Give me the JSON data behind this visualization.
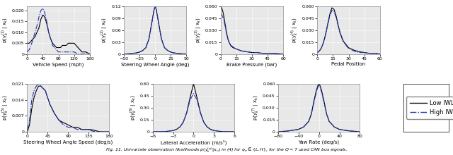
{
  "subplots": [
    {
      "xlabel": "Vehicle Speed (mph)",
      "ylabel": "p(y$_k^{(1)}$ | x$_k$)",
      "xlim": [
        0,
        160
      ],
      "ylim": [
        0,
        0.022
      ],
      "yticks": [
        0,
        0.005,
        0.01,
        0.015,
        0.02
      ],
      "ytick_labels": [
        "0",
        "0.005",
        "0.010",
        "0.015",
        "0.020"
      ],
      "xticks": [
        0,
        40,
        80,
        120,
        160
      ],
      "low_x": [
        0,
        5,
        10,
        15,
        20,
        25,
        30,
        35,
        40,
        45,
        50,
        55,
        60,
        65,
        70,
        75,
        80,
        85,
        90,
        95,
        100,
        105,
        110,
        115,
        120,
        125,
        130,
        135,
        140,
        145,
        150,
        155,
        160
      ],
      "low_y": [
        0.005,
        0.005,
        0.006,
        0.007,
        0.008,
        0.01,
        0.012,
        0.016,
        0.018,
        0.017,
        0.014,
        0.01,
        0.007,
        0.005,
        0.004,
        0.003,
        0.003,
        0.003,
        0.004,
        0.004,
        0.004,
        0.005,
        0.005,
        0.005,
        0.005,
        0.004,
        0.003,
        0.002,
        0.001,
        0.001,
        0.001,
        0.0005,
        0.0
      ],
      "high_x": [
        0,
        5,
        10,
        15,
        20,
        25,
        30,
        35,
        40,
        45,
        50,
        55,
        60,
        65,
        70,
        75,
        80,
        85,
        90,
        95,
        100,
        105,
        110,
        115,
        120,
        125,
        130,
        135,
        140,
        145,
        150,
        155,
        160
      ],
      "high_y": [
        0.001,
        0.002,
        0.004,
        0.007,
        0.01,
        0.013,
        0.017,
        0.02,
        0.021,
        0.019,
        0.015,
        0.01,
        0.007,
        0.004,
        0.003,
        0.002,
        0.001,
        0.001,
        0.001,
        0.001,
        0.001,
        0.001,
        0.001,
        0.001,
        0.001,
        0.0005,
        0.0,
        0.0,
        0.0,
        0.0,
        0.0,
        0.0,
        0.0
      ]
    },
    {
      "xlabel": "Steering Wheel Angle (deg)",
      "ylabel": "p(y$_k^{(2)}$ | x$_k$)",
      "xlim": [
        -50,
        50
      ],
      "ylim": [
        0,
        0.12
      ],
      "yticks": [
        0,
        0.03,
        0.06,
        0.09,
        0.12
      ],
      "ytick_labels": [
        "0",
        "0.03",
        "0.06",
        "0.09",
        "0.12"
      ],
      "xticks": [
        -50,
        -25,
        0,
        25,
        50
      ],
      "low_x": [
        -50,
        -45,
        -40,
        -35,
        -30,
        -25,
        -20,
        -15,
        -10,
        -5,
        -2,
        0,
        2,
        5,
        10,
        15,
        20,
        25,
        30,
        35,
        40,
        45,
        50
      ],
      "low_y": [
        0.0,
        0.0005,
        0.001,
        0.002,
        0.003,
        0.005,
        0.009,
        0.016,
        0.038,
        0.082,
        0.11,
        0.12,
        0.11,
        0.082,
        0.038,
        0.016,
        0.009,
        0.005,
        0.003,
        0.002,
        0.001,
        0.0005,
        0.0
      ],
      "high_x": [
        -50,
        -45,
        -40,
        -35,
        -30,
        -25,
        -20,
        -15,
        -10,
        -5,
        -2,
        0,
        2,
        5,
        10,
        15,
        20,
        25,
        30,
        35,
        40,
        45,
        50
      ],
      "high_y": [
        0.0,
        0.0005,
        0.001,
        0.002,
        0.003,
        0.005,
        0.009,
        0.016,
        0.038,
        0.082,
        0.11,
        0.12,
        0.11,
        0.082,
        0.038,
        0.016,
        0.009,
        0.005,
        0.003,
        0.002,
        0.001,
        0.0005,
        0.0
      ]
    },
    {
      "xlabel": "Brake Pressure (bar)",
      "ylabel": "p(y$_k^{(3)}$ | x$_k$)",
      "xlim": [
        0,
        60
      ],
      "ylim": [
        0,
        0.06
      ],
      "yticks": [
        0,
        0.015,
        0.03,
        0.045,
        0.06
      ],
      "ytick_labels": [
        "0",
        "0.015",
        "0.030",
        "0.045",
        "0.060"
      ],
      "xticks": [
        0,
        15,
        30,
        45,
        60
      ],
      "low_x": [
        0,
        1,
        2,
        3,
        4,
        5,
        6,
        7,
        8,
        10,
        12,
        14,
        16,
        18,
        20,
        25,
        30,
        35,
        40,
        45,
        50,
        55,
        60
      ],
      "low_y": [
        0.06,
        0.058,
        0.054,
        0.048,
        0.04,
        0.032,
        0.025,
        0.019,
        0.015,
        0.01,
        0.008,
        0.007,
        0.006,
        0.005,
        0.004,
        0.003,
        0.002,
        0.002,
        0.001,
        0.001,
        0.001,
        0.0005,
        0.0
      ],
      "high_x": [
        0,
        1,
        2,
        3,
        4,
        5,
        6,
        7,
        8,
        10,
        12,
        14,
        16,
        18,
        20,
        25,
        30,
        35,
        40,
        45,
        50,
        55,
        60
      ],
      "high_y": [
        0.05,
        0.049,
        0.047,
        0.043,
        0.037,
        0.03,
        0.024,
        0.019,
        0.015,
        0.011,
        0.009,
        0.007,
        0.006,
        0.005,
        0.004,
        0.003,
        0.002,
        0.002,
        0.001,
        0.001,
        0.001,
        0.0005,
        0.0
      ]
    },
    {
      "xlabel": "Pedal Position",
      "ylabel": "p(y$_k^{(4)}$ | x$_k$)",
      "xlim": [
        0,
        60
      ],
      "ylim": [
        0,
        0.06
      ],
      "yticks": [
        0,
        0.015,
        0.03,
        0.045,
        0.06
      ],
      "ytick_labels": [
        "0",
        "0.015",
        "0.030",
        "0.045",
        "0.060"
      ],
      "xticks": [
        0,
        15,
        30,
        45,
        60
      ],
      "low_x": [
        0,
        2,
        4,
        6,
        8,
        10,
        12,
        14,
        16,
        18,
        20,
        22,
        25,
        30,
        35,
        40,
        45,
        50,
        55,
        60
      ],
      "low_y": [
        0.002,
        0.004,
        0.008,
        0.015,
        0.025,
        0.038,
        0.05,
        0.058,
        0.056,
        0.048,
        0.036,
        0.026,
        0.016,
        0.008,
        0.005,
        0.003,
        0.002,
        0.001,
        0.001,
        0.0
      ],
      "high_x": [
        0,
        2,
        4,
        6,
        8,
        10,
        12,
        14,
        16,
        18,
        20,
        22,
        25,
        30,
        35,
        40,
        45,
        50,
        55,
        60
      ],
      "high_y": [
        0.002,
        0.004,
        0.008,
        0.015,
        0.025,
        0.037,
        0.048,
        0.055,
        0.053,
        0.046,
        0.035,
        0.025,
        0.015,
        0.007,
        0.004,
        0.002,
        0.002,
        0.001,
        0.001,
        0.0
      ]
    },
    {
      "xlabel": "Steering Wheel Angle Speed (deg/s)",
      "ylabel": "p(y$_k^{(5)}$ | x$_k$)",
      "xlim": [
        0,
        180
      ],
      "ylim": [
        0,
        0.021
      ],
      "yticks": [
        0,
        0.007,
        0.014,
        0.021
      ],
      "ytick_labels": [
        "0",
        "0.007",
        "0.014",
        "0.021"
      ],
      "xticks": [
        0,
        45,
        90,
        135,
        180
      ],
      "low_x": [
        0,
        2,
        5,
        8,
        10,
        15,
        20,
        25,
        30,
        35,
        40,
        45,
        50,
        60,
        70,
        80,
        90,
        100,
        110,
        120,
        130,
        140,
        150,
        160,
        170,
        180
      ],
      "low_y": [
        0.0,
        0.001,
        0.003,
        0.007,
        0.01,
        0.015,
        0.018,
        0.02,
        0.02,
        0.019,
        0.018,
        0.015,
        0.012,
        0.008,
        0.005,
        0.004,
        0.003,
        0.002,
        0.002,
        0.001,
        0.001,
        0.001,
        0.0005,
        0.0,
        0.0,
        0.0
      ],
      "high_x": [
        0,
        2,
        5,
        8,
        10,
        15,
        20,
        25,
        30,
        35,
        40,
        45,
        50,
        60,
        70,
        80,
        90,
        100,
        110,
        120,
        130,
        140,
        150,
        160,
        170,
        180
      ],
      "high_y": [
        0.001,
        0.002,
        0.005,
        0.01,
        0.014,
        0.018,
        0.02,
        0.021,
        0.02,
        0.019,
        0.018,
        0.015,
        0.012,
        0.008,
        0.005,
        0.003,
        0.002,
        0.002,
        0.001,
        0.001,
        0.001,
        0.0005,
        0.0,
        0.0,
        0.0,
        0.0
      ]
    },
    {
      "xlabel": "Lateral Acceleration (m/s²)",
      "ylabel": "p(y$_k^{(6)}$ | x$_k$)",
      "xlim": [
        -6,
        6
      ],
      "ylim": [
        0,
        0.6
      ],
      "yticks": [
        0,
        0.15,
        0.3,
        0.45,
        0.6
      ],
      "ytick_labels": [
        "0",
        "0.15",
        "0.30",
        "0.45",
        "0.60"
      ],
      "xticks": [
        -6,
        -3,
        0,
        3,
        6
      ],
      "low_x": [
        -6,
        -5,
        -4,
        -3,
        -2.5,
        -2,
        -1.5,
        -1,
        -0.5,
        0,
        0.5,
        1,
        1.5,
        2,
        2.5,
        3,
        4,
        5,
        6
      ],
      "low_y": [
        0.0,
        0.001,
        0.004,
        0.015,
        0.03,
        0.06,
        0.12,
        0.24,
        0.43,
        0.6,
        0.43,
        0.24,
        0.12,
        0.06,
        0.03,
        0.015,
        0.004,
        0.001,
        0.0
      ],
      "high_x": [
        -6,
        -5,
        -4,
        -3,
        -2.5,
        -2,
        -1.5,
        -1,
        -0.5,
        0,
        0.5,
        1,
        1.5,
        2,
        2.5,
        3,
        4,
        5,
        6
      ],
      "high_y": [
        0.0,
        0.001,
        0.004,
        0.015,
        0.03,
        0.06,
        0.12,
        0.24,
        0.4,
        0.48,
        0.4,
        0.24,
        0.12,
        0.06,
        0.03,
        0.015,
        0.004,
        0.001,
        0.0
      ]
    },
    {
      "xlabel": "Yaw Rate (deg/s)",
      "ylabel": "p(y$_k^{(7)}$ | x$_k$)",
      "xlim": [
        -80,
        80
      ],
      "ylim": [
        0,
        0.06
      ],
      "yticks": [
        0,
        0.015,
        0.03,
        0.045,
        0.06
      ],
      "ytick_labels": [
        "0",
        "0.015",
        "0.030",
        "0.045",
        "0.060"
      ],
      "xticks": [
        -80,
        -40,
        0,
        40,
        80
      ],
      "low_x": [
        -80,
        -70,
        -60,
        -50,
        -40,
        -30,
        -20,
        -15,
        -10,
        -5,
        -2,
        0,
        2,
        5,
        10,
        15,
        20,
        30,
        40,
        50,
        60,
        70,
        80
      ],
      "low_y": [
        0.0,
        0.0005,
        0.001,
        0.002,
        0.003,
        0.006,
        0.013,
        0.022,
        0.038,
        0.052,
        0.058,
        0.06,
        0.058,
        0.052,
        0.038,
        0.022,
        0.013,
        0.006,
        0.003,
        0.002,
        0.001,
        0.0005,
        0.0
      ],
      "high_x": [
        -80,
        -70,
        -60,
        -50,
        -40,
        -30,
        -20,
        -15,
        -10,
        -5,
        -2,
        0,
        2,
        5,
        10,
        15,
        20,
        30,
        40,
        50,
        60,
        70,
        80
      ],
      "high_y": [
        0.0,
        0.0005,
        0.001,
        0.002,
        0.003,
        0.006,
        0.013,
        0.022,
        0.036,
        0.05,
        0.056,
        0.058,
        0.056,
        0.05,
        0.036,
        0.022,
        0.013,
        0.006,
        0.003,
        0.002,
        0.001,
        0.0005,
        0.0
      ]
    }
  ],
  "low_color": "#000000",
  "high_color": "#2233bb",
  "low_label": "Low IWL",
  "high_label": "High IWL",
  "low_linestyle": "-",
  "high_linestyle": "-.",
  "line_width": 0.8,
  "bg_color": "#e8e8e8",
  "grid_color": "#ffffff",
  "tick_fontsize": 4.5,
  "label_fontsize": 5.0,
  "legend_fontsize": 6.0,
  "caption": "Fig. 11. Univariate observation likelihoods p(y_k^{(q)}|x_n) in (4) for q_n \\in \\{L,H\\}, for the Q = 7 used CAN bus signals."
}
